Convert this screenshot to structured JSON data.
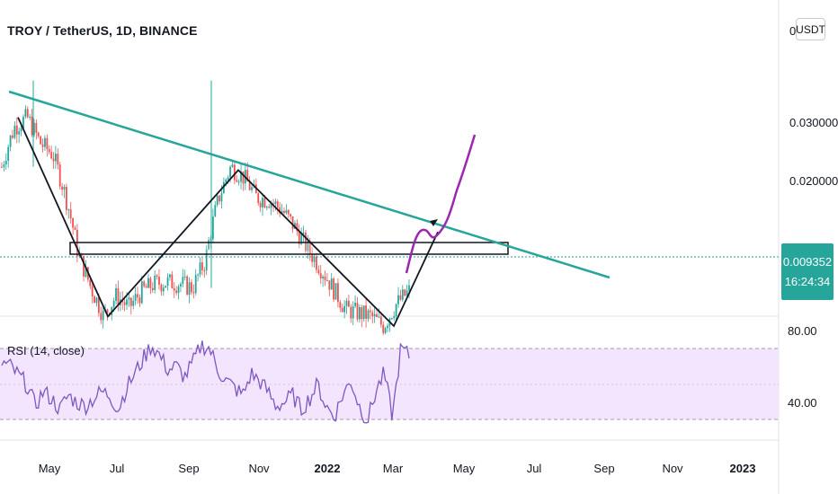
{
  "header": {
    "title": "TROY / TetherUS, 1D, BINANCE",
    "currency_button": "USDT"
  },
  "last_price": {
    "value": "0.009352",
    "countdown": "16:24:34",
    "color": "#26a69a"
  },
  "rsi_panel": {
    "label": "RSI (14, close)"
  },
  "colors": {
    "up_candle": "#26a69a",
    "down_candle": "#ef5350",
    "trendline": "#26a69a",
    "pattern_line": "#131722",
    "forecast_line": "#9c27b0",
    "rsi_line": "#7e57c2",
    "rsi_band": "#f3e5fd"
  },
  "chart_data": [
    {
      "type": "line",
      "title": "TROY / TetherUS, 1D, BINANCE",
      "y_scale": "log",
      "y_ticks": [
        "0.030000",
        "0.020000"
      ],
      "y_top_label": "0",
      "x_ticks": [
        "May",
        "Jul",
        "Sep",
        "Nov",
        "2022",
        "Mar",
        "May",
        "Jul",
        "Sep",
        "Nov",
        "2023"
      ],
      "series": [
        {
          "values": [
            0.022,
            0.029,
            0.031,
            0.026,
            0.024,
            0.018,
            0.012,
            0.0095,
            0.0078,
            0.009,
            0.0083,
            0.0093,
            0.0098,
            0.0099,
            0.0098,
            0.0095,
            0.0115,
            0.0175,
            0.022,
            0.0205,
            0.0178,
            0.0175,
            0.0163,
            0.0145,
            0.0125,
            0.011,
            0.0095,
            0.0082,
            0.008,
            0.0078,
            0.0073,
            0.0085,
            0.0093
          ]
        }
      ],
      "annotations": {
        "descending_trendline": [
          {
            "x": "Apr",
            "y": 0.032
          },
          {
            "x": "Jun 2022",
            "y": 0.0084
          }
        ],
        "support_zone": [
          0.01,
          0.0106
        ],
        "forecast_path": [
          0.0085,
          0.0118,
          0.0111,
          0.0128,
          0.0142,
          0.0175,
          0.025
        ],
        "wave_pattern": [
          0.031,
          0.0078,
          0.0215,
          0.0073,
          0.014
        ]
      }
    },
    {
      "type": "line",
      "title": "RSI (14, close)",
      "y_ticks": [
        "80.00",
        "40.00"
      ],
      "bands": [
        30,
        70
      ],
      "series": [
        {
          "values": [
            62,
            60,
            55,
            50,
            38,
            46,
            42,
            36,
            44,
            40,
            38,
            42,
            46,
            44,
            36,
            48,
            56,
            64,
            72,
            66,
            58,
            60,
            54,
            62,
            72,
            70,
            58,
            52,
            48,
            44,
            56,
            52,
            46,
            38,
            40,
            44,
            36,
            42,
            50,
            38,
            32,
            44,
            52,
            38,
            30,
            46,
            56,
            32,
            70,
            66
          ]
        }
      ]
    }
  ]
}
